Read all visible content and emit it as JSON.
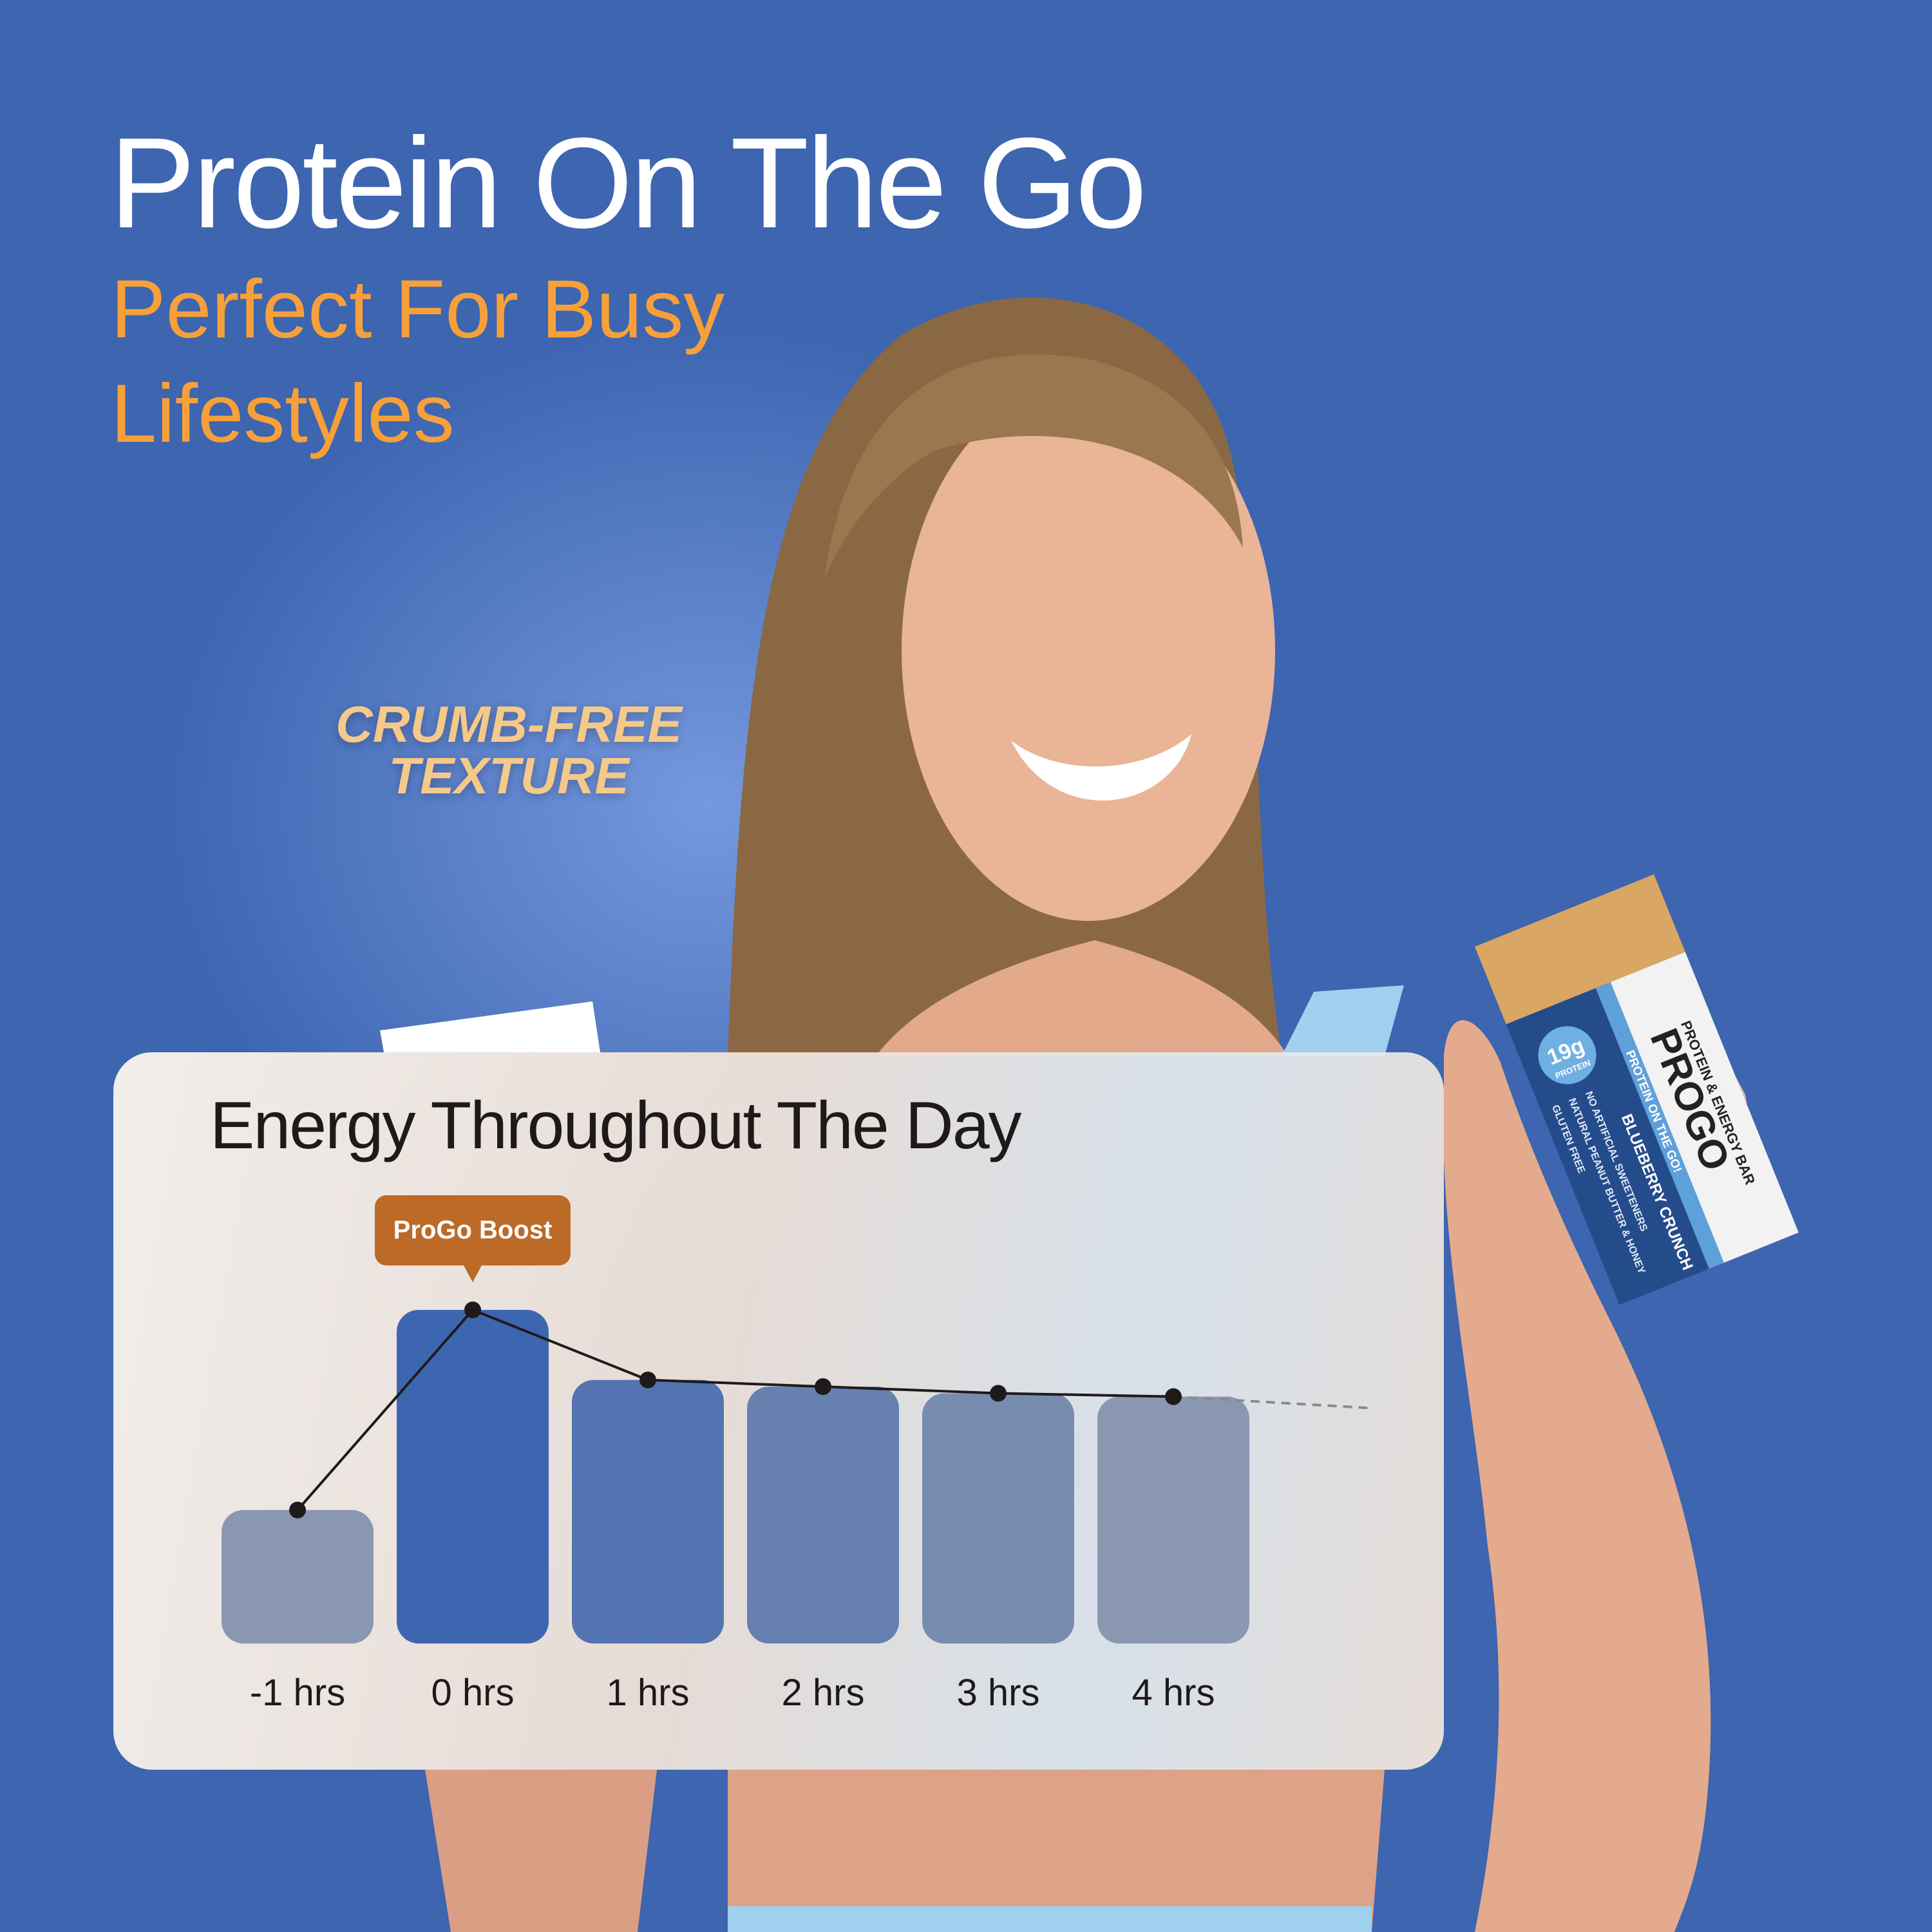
{
  "headline": "Protein On The Go",
  "subheadline": "Perfect For Busy Lifestyles",
  "callout": [
    "CRUMB-FREE",
    "TEXTURE"
  ],
  "product": {
    "brand": "PROGO",
    "tagline": "PROTEIN & ENERGY BAR",
    "slogan": "PROTEIN ON THE GO!",
    "protein": "19g",
    "protein_label": "PROTEIN",
    "flavor": "BLUEBERRY CRUNCH",
    "badges": [
      "GLUTEN FREE",
      "NATURAL PEANUT BUTTER & HONEY",
      "NO ARTIFICIAL SWEETENERS"
    ]
  },
  "colors": {
    "background": "#3D65B0",
    "headline": "#FFFFFF",
    "subheadline": "#F7A03A",
    "callout": "#F5C98A",
    "badge": "#BC6A28"
  },
  "chart_data": {
    "type": "bar",
    "title": "Energy Throughout The Day",
    "categories": [
      "-1 hrs",
      "0 hrs",
      "1 hrs",
      "2 hrs",
      "3 hrs",
      "4 hrs"
    ],
    "values": [
      40,
      100,
      79,
      77,
      75,
      74
    ],
    "overlay_line": true,
    "trend_continues": "dashed",
    "bar_colors": [
      "#8A97B0",
      "#3D66B0",
      "#5374B0",
      "#6680B0",
      "#788CB0",
      "#8A97B0"
    ],
    "annotation": {
      "label": "ProGo Boost",
      "category": "0 hrs"
    },
    "ylim": [
      0,
      100
    ],
    "grid": false
  }
}
